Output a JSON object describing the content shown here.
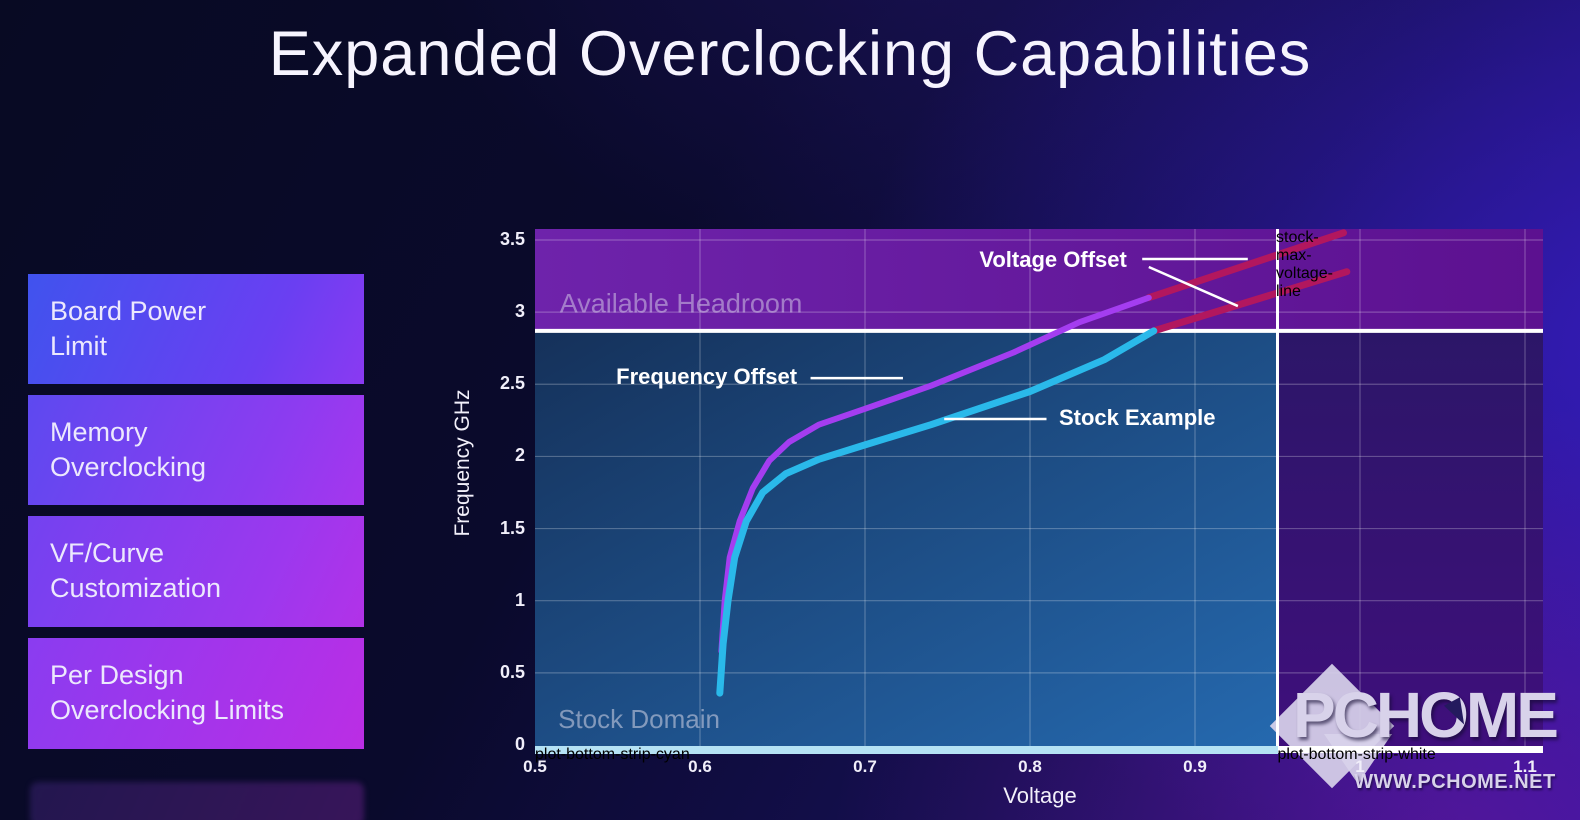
{
  "title": "Expanded Overclocking Capabilities",
  "sidebar": {
    "items": [
      {
        "id": "board-power-limit",
        "lines": [
          "Board Power",
          "Limit"
        ]
      },
      {
        "id": "memory-overclocking",
        "lines": [
          "Memory",
          "Overclocking"
        ]
      },
      {
        "id": "vf-curve-customization",
        "lines": [
          "VF/Curve",
          "Customization"
        ]
      },
      {
        "id": "per-design-overclocking-limits",
        "lines": [
          "Per Design",
          "Overclocking Limits"
        ]
      }
    ]
  },
  "chart_data": {
    "type": "line",
    "title": "",
    "xlabel": "Voltage",
    "ylabel": "Frequency GHz",
    "xlim": [
      0.5,
      1.1
    ],
    "ylim": [
      0,
      3.5
    ],
    "grid": true,
    "xticks": {
      "values": [
        0.5,
        0.6,
        0.7,
        0.8,
        0.9,
        1,
        1.1
      ],
      "labels": [
        "0.5",
        "0.6",
        "0.7",
        "0.8",
        "0.9",
        "1",
        "1.1"
      ]
    },
    "yticks": {
      "values": [
        0,
        0.5,
        1,
        1.5,
        2,
        2.5,
        3,
        3.5
      ],
      "labels": [
        "0",
        "0.5",
        "1",
        "1.5",
        "2",
        "2.5",
        "3",
        "3.5"
      ]
    },
    "reference_lines": {
      "stock_max_frequency_ghz": 2.87,
      "stock_max_voltage_v": 0.95
    },
    "regions": [
      {
        "id": "available-headroom",
        "label": "Available Headroom",
        "color_a": "#6e23ab",
        "color_b": "#5c1190",
        "label_anchor": [
          0.515,
          3.06
        ],
        "label_color": "rgba(210,198,230,0.55)",
        "label_size": 27
      },
      {
        "id": "stock-domain",
        "label": "Stock Domain",
        "color_a": "#15315a",
        "color_b": "#2569af",
        "label_anchor": [
          0.514,
          0.18
        ],
        "label_color": "rgba(198,204,224,0.60)",
        "label_size": 26
      },
      {
        "id": "beyond-stock-voltage",
        "label": "",
        "color_a": "#2c1668",
        "color_b": "#3f0f7c",
        "label_anchor": [
          0,
          0
        ],
        "label_color": "",
        "label_size": 0
      }
    ],
    "series": [
      {
        "name": "Stock Example voltage-offset extension",
        "color": "#b2175e",
        "width": 7,
        "points": [
          [
            0.875,
            2.87
          ],
          [
            0.992,
            3.28
          ]
        ]
      },
      {
        "name": "Frequency Offset voltage-offset extension",
        "color": "#b2175e",
        "width": 7,
        "points": [
          [
            0.872,
            3.1
          ],
          [
            0.99,
            3.55
          ]
        ]
      },
      {
        "name": "Frequency Offset",
        "color": "#a43df0",
        "width": 6,
        "points": [
          [
            0.613,
            0.65
          ],
          [
            0.615,
            1.0
          ],
          [
            0.618,
            1.3
          ],
          [
            0.624,
            1.55
          ],
          [
            0.632,
            1.78
          ],
          [
            0.642,
            1.97
          ],
          [
            0.654,
            2.1
          ],
          [
            0.672,
            2.22
          ],
          [
            0.7,
            2.33
          ],
          [
            0.74,
            2.49
          ],
          [
            0.79,
            2.72
          ],
          [
            0.83,
            2.93
          ],
          [
            0.872,
            3.1
          ]
        ]
      },
      {
        "name": "Stock Example",
        "color": "#2ab9ea",
        "width": 7,
        "points": [
          [
            0.612,
            0.36
          ],
          [
            0.614,
            0.7
          ],
          [
            0.617,
            1.0
          ],
          [
            0.621,
            1.3
          ],
          [
            0.628,
            1.55
          ],
          [
            0.638,
            1.75
          ],
          [
            0.652,
            1.88
          ],
          [
            0.672,
            1.98
          ],
          [
            0.7,
            2.08
          ],
          [
            0.74,
            2.22
          ],
          [
            0.8,
            2.45
          ],
          [
            0.845,
            2.67
          ],
          [
            0.875,
            2.87
          ]
        ]
      }
    ],
    "annotations": [
      {
        "text": "Voltage Offset",
        "anchor": [
          0.814,
          3.368
        ],
        "leaders": [
          [
            [
              0.868,
              3.368
            ],
            [
              0.932,
              3.368
            ]
          ],
          [
            [
              0.872,
              3.313
            ],
            [
              0.926,
              3.042
            ]
          ]
        ]
      },
      {
        "text": "Frequency Offset",
        "anchor": [
          0.604,
          2.557
        ],
        "leaders": [
          [
            [
              0.667,
              2.543
            ],
            [
              0.723,
              2.543
            ]
          ]
        ]
      },
      {
        "text": "Stock Example",
        "anchor": [
          0.865,
          2.273
        ],
        "leaders": [
          [
            [
              0.748,
              2.259
            ],
            [
              0.81,
              2.259
            ]
          ]
        ]
      }
    ]
  },
  "watermark": {
    "logo_text": "PCHOME",
    "url_text": "WWW.PCHOME.NET"
  }
}
